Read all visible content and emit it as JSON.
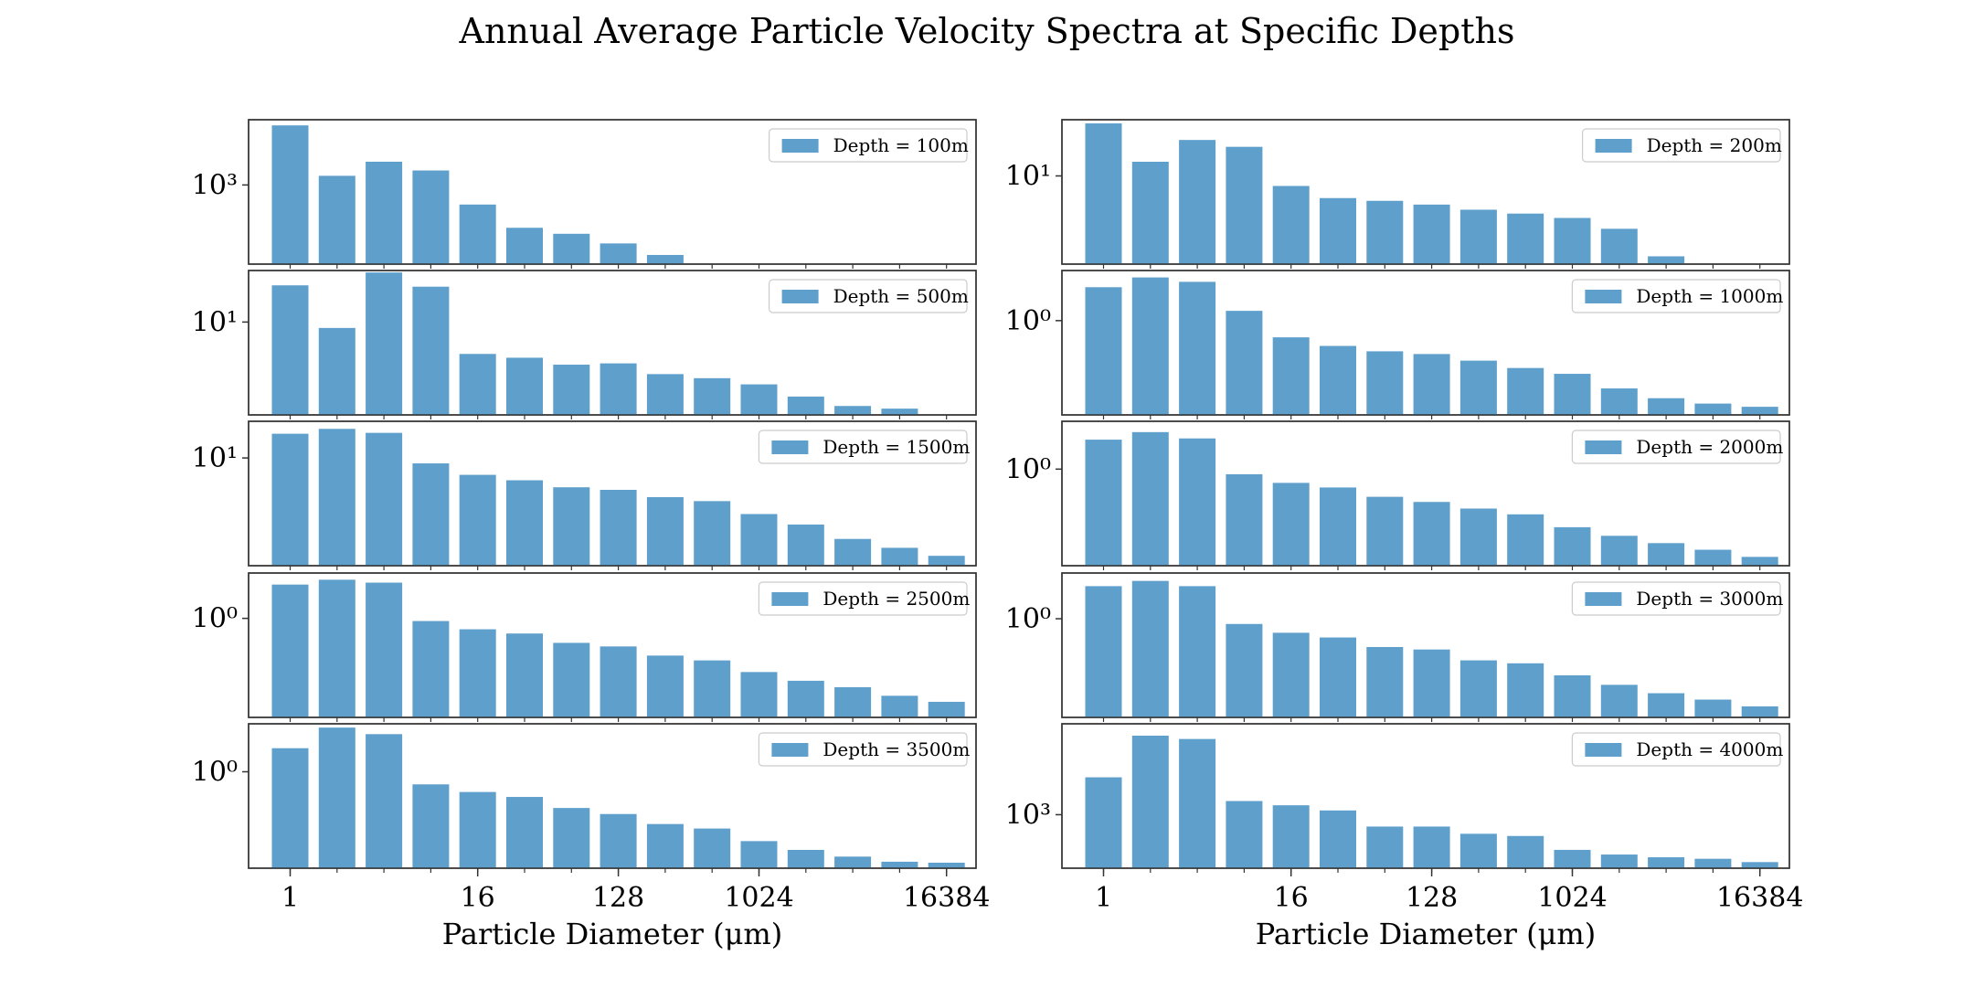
{
  "chart_data": {
    "title": "Annual Average Particle Velocity Spectra at Specific Depths",
    "type": "bar",
    "yscale": "log",
    "xscale": "log2",
    "bar_color": "#5f9fcc",
    "x": [
      1,
      2,
      4,
      8,
      16,
      32,
      64,
      128,
      256,
      512,
      1024,
      2048,
      4096,
      8192,
      16384
    ],
    "xticks": [
      "1",
      "16",
      "128",
      "1024",
      "16384"
    ],
    "xlabel": "Particle Diameter (μm)",
    "legend_position": "upper right",
    "panels": [
      {
        "legend": "Depth = 100m",
        "ytick": "10³",
        "ylim": [
          30,
          18000
        ],
        "values": [
          14000,
          1500,
          2800,
          1900,
          420,
          150,
          115,
          75,
          45,
          20,
          20,
          0,
          0,
          0,
          0
        ]
      },
      {
        "legend": "Depth = 200m",
        "ytick": "10¹",
        "ylim": [
          0.8,
          50
        ],
        "values": [
          45,
          15,
          28,
          23,
          7.5,
          5.3,
          4.9,
          4.4,
          3.8,
          3.4,
          3.0,
          2.2,
          1.0,
          0,
          0
        ]
      },
      {
        "legend": "Depth = 500m",
        "ytick": "10¹",
        "ylim": [
          0.3,
          70
        ],
        "values": [
          40,
          8,
          65,
          38,
          3.0,
          2.6,
          2.0,
          2.1,
          1.4,
          1.2,
          0.95,
          0.6,
          0.42,
          0.38,
          0
        ]
      },
      {
        "legend": "Depth = 1000m",
        "ytick": "10⁰",
        "ylim": [
          0.02,
          8
        ],
        "values": [
          4.0,
          6.0,
          5.0,
          1.5,
          0.5,
          0.35,
          0.28,
          0.25,
          0.19,
          0.14,
          0.11,
          0.06,
          0.04,
          0.032,
          0.028
        ]
      },
      {
        "legend": "Depth = 1500m",
        "ytick": "10¹",
        "ylim": [
          0.12,
          45
        ],
        "values": [
          27,
          33,
          28,
          8.0,
          5.0,
          4.0,
          3.0,
          2.7,
          2.0,
          1.7,
          1.0,
          0.65,
          0.36,
          0.25,
          0.18
        ]
      },
      {
        "legend": "Depth = 2000m",
        "ytick": "10⁰",
        "ylim": [
          0.015,
          8
        ],
        "values": [
          3.6,
          5.0,
          3.8,
          0.8,
          0.55,
          0.45,
          0.3,
          0.24,
          0.18,
          0.14,
          0.08,
          0.055,
          0.04,
          0.03,
          0.022
        ]
      },
      {
        "legend": "Depth = 2500m",
        "ytick": "10⁰",
        "ylim": [
          0.02,
          6
        ],
        "values": [
          3.8,
          4.6,
          4.1,
          0.9,
          0.65,
          0.55,
          0.38,
          0.33,
          0.23,
          0.19,
          0.12,
          0.085,
          0.066,
          0.047,
          0.037
        ]
      },
      {
        "legend": "Depth = 3000m",
        "ytick": "10⁰",
        "ylim": [
          0.015,
          7
        ],
        "values": [
          4.0,
          5.0,
          4.0,
          0.8,
          0.55,
          0.45,
          0.3,
          0.27,
          0.17,
          0.15,
          0.09,
          0.06,
          0.042,
          0.032,
          0.024
        ]
      },
      {
        "legend": "Depth = 3500m",
        "ytick": "10⁰",
        "ylim": [
          0.02,
          7
        ],
        "values": [
          2.6,
          6.0,
          4.6,
          0.6,
          0.44,
          0.36,
          0.23,
          0.18,
          0.12,
          0.1,
          0.06,
          0.042,
          0.032,
          0.026,
          0.025
        ]
      },
      {
        "legend": "Depth = 4000m",
        "ytick": "10³",
        "ylim": [
          100,
          50000
        ],
        "values": [
          5000,
          30000,
          26000,
          1800,
          1500,
          1200,
          600,
          600,
          440,
          400,
          220,
          180,
          160,
          150,
          130
        ]
      }
    ]
  }
}
